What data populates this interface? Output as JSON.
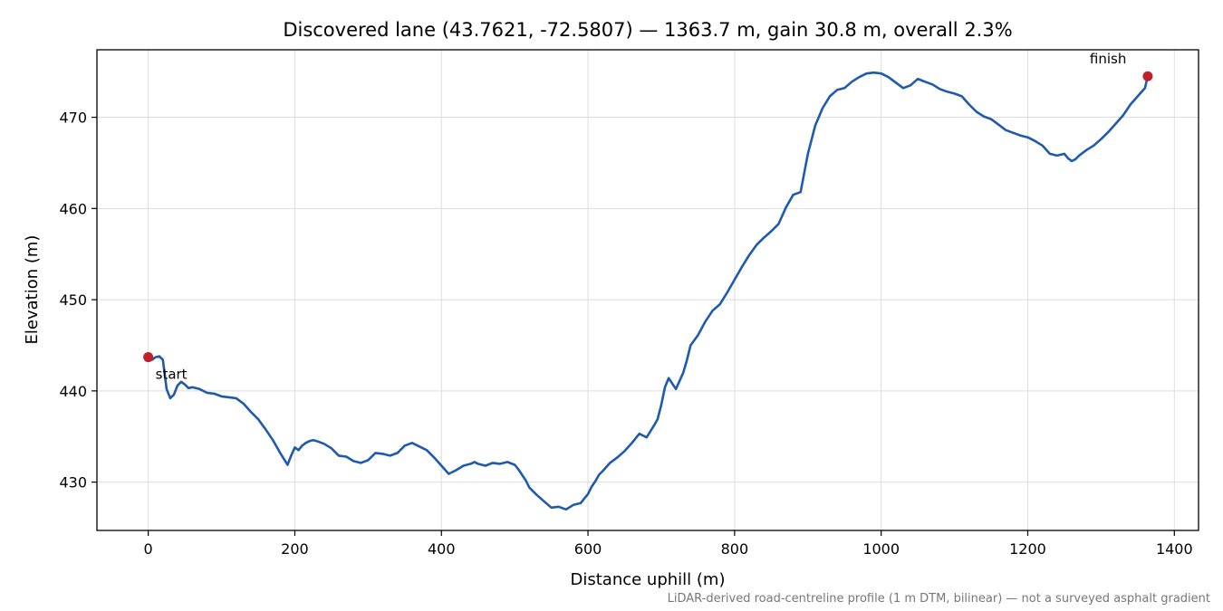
{
  "chart_data": {
    "type": "line",
    "title": "Discovered lane (43.7621, -72.5807) — 1363.7 m, gain 30.8 m, overall 2.3%",
    "xlabel": "Distance uphill (m)",
    "ylabel": "Elevation (m)",
    "xlim": [
      -70,
      1433
    ],
    "ylim": [
      424.7,
      477.4
    ],
    "x_ticks": [
      0,
      200,
      400,
      600,
      800,
      1000,
      1200,
      1400
    ],
    "x_tick_labels": [
      "0",
      "200",
      "400",
      "600",
      "800",
      "1000",
      "1200",
      "1400"
    ],
    "y_ticks": [
      430,
      440,
      450,
      460,
      470
    ],
    "y_tick_labels": [
      "430",
      "440",
      "450",
      "460",
      "470"
    ],
    "grid": true,
    "line_color": "#1f5aad",
    "marker_color": "#c0202a",
    "series": [
      {
        "x": [
          0,
          5,
          10,
          15,
          20,
          25,
          30,
          35,
          40,
          45,
          50,
          55,
          60,
          70,
          80,
          90,
          100,
          110,
          120,
          130,
          140,
          150,
          160,
          170,
          180,
          190,
          195,
          200,
          205,
          210,
          215,
          220,
          225,
          230,
          240,
          250,
          260,
          270,
          280,
          290,
          300,
          310,
          320,
          330,
          340,
          350,
          360,
          370,
          380,
          390,
          400,
          410,
          420,
          430,
          440,
          445,
          450,
          460,
          470,
          480,
          490,
          500,
          505,
          510,
          515,
          520,
          530,
          540,
          550,
          560,
          570,
          580,
          590,
          595,
          600,
          605,
          610,
          615,
          620,
          630,
          640,
          650,
          660,
          670,
          680,
          690,
          695,
          700,
          705,
          710,
          720,
          730,
          735,
          740,
          750,
          760,
          770,
          780,
          790,
          800,
          810,
          820,
          830,
          840,
          850,
          860,
          870,
          880,
          890,
          900,
          910,
          920,
          930,
          940,
          950,
          960,
          970,
          980,
          990,
          1000,
          1010,
          1020,
          1030,
          1040,
          1050,
          1060,
          1070,
          1080,
          1090,
          1100,
          1110,
          1120,
          1130,
          1140,
          1150,
          1160,
          1170,
          1180,
          1190,
          1200,
          1210,
          1220,
          1230,
          1240,
          1250,
          1255,
          1260,
          1265,
          1270,
          1280,
          1290,
          1300,
          1310,
          1320,
          1330,
          1340,
          1350,
          1360,
          1363.7
        ],
        "y": [
          443.7,
          443.4,
          443.7,
          443.8,
          443.4,
          440.2,
          439.2,
          439.6,
          440.6,
          441.0,
          440.7,
          440.3,
          440.4,
          440.2,
          439.8,
          439.7,
          439.4,
          439.3,
          439.2,
          438.6,
          437.7,
          436.9,
          435.8,
          434.6,
          433.2,
          431.9,
          432.9,
          433.8,
          433.5,
          434.0,
          434.3,
          434.5,
          434.6,
          434.5,
          434.2,
          433.7,
          432.9,
          432.8,
          432.3,
          432.1,
          432.4,
          433.2,
          433.1,
          432.9,
          433.2,
          434.0,
          434.3,
          433.9,
          433.5,
          432.7,
          431.8,
          430.9,
          431.3,
          431.8,
          432.0,
          432.2,
          432.0,
          431.8,
          432.1,
          432.0,
          432.2,
          431.9,
          431.4,
          430.8,
          430.2,
          429.4,
          428.6,
          427.9,
          427.2,
          427.3,
          427.0,
          427.5,
          427.7,
          428.2,
          428.7,
          429.5,
          430.1,
          430.8,
          431.2,
          432.1,
          432.7,
          433.4,
          434.3,
          435.3,
          434.9,
          436.2,
          436.9,
          438.5,
          440.4,
          441.4,
          440.2,
          442.0,
          443.4,
          445.0,
          446.1,
          447.6,
          448.8,
          449.5,
          450.8,
          452.2,
          453.6,
          454.9,
          456.0,
          456.8,
          457.5,
          458.3,
          460.1,
          461.5,
          461.8,
          466.0,
          469.1,
          471.0,
          472.3,
          473.0,
          473.2,
          473.9,
          474.4,
          474.8,
          474.9,
          474.8,
          474.4,
          473.8,
          473.2,
          473.5,
          474.2,
          473.9,
          473.6,
          473.1,
          472.8,
          472.6,
          472.3,
          471.4,
          470.6,
          470.1,
          469.8,
          469.2,
          468.6,
          468.3,
          468.0,
          467.8,
          467.4,
          466.9,
          466.0,
          465.8,
          466.0,
          465.5,
          465.2,
          465.4,
          465.8,
          466.4,
          466.9,
          467.6,
          468.4,
          469.3,
          470.2,
          471.4,
          472.3,
          473.2,
          474.5
        ]
      }
    ],
    "annotations": [
      {
        "text": "start",
        "x": 0,
        "y": 443.7
      },
      {
        "text": "finish",
        "x": 1363.7,
        "y": 474.5
      }
    ],
    "footnote": "LiDAR-derived road-centreline profile (1 m DTM, bilinear) — not a surveyed asphalt gradient"
  }
}
